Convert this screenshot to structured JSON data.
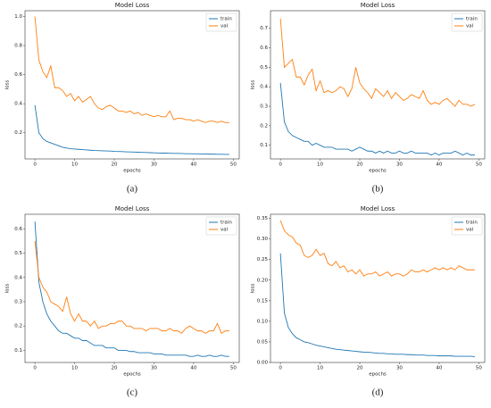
{
  "chart_data": [
    {
      "type": "line",
      "title": "Model Loss",
      "xlabel": "epochs",
      "ylabel": "loss",
      "caption": "(a)",
      "legend": "upper right",
      "xlim": [
        -2.5,
        51.5
      ],
      "ylim": [
        0.02,
        1.04
      ],
      "xticks": [
        0,
        10,
        20,
        30,
        40,
        50
      ],
      "yticks": [
        0.2,
        0.4,
        0.6,
        0.8,
        {
          "value": 1.0,
          "label": "1.0"
        }
      ],
      "x": [
        0,
        1,
        2,
        3,
        4,
        5,
        6,
        7,
        8,
        9,
        10,
        11,
        12,
        13,
        14,
        15,
        16,
        17,
        18,
        19,
        20,
        21,
        22,
        23,
        24,
        25,
        26,
        27,
        28,
        29,
        30,
        31,
        32,
        33,
        34,
        35,
        36,
        37,
        38,
        39,
        40,
        41,
        42,
        43,
        44,
        45,
        46,
        47,
        48,
        49
      ],
      "series": [
        {
          "name": "train",
          "color": "#1f77b4",
          "values": [
            0.39,
            0.2,
            0.16,
            0.14,
            0.13,
            0.12,
            0.11,
            0.1,
            0.095,
            0.09,
            0.088,
            0.086,
            0.084,
            0.082,
            0.08,
            0.078,
            0.077,
            0.076,
            0.075,
            0.074,
            0.072,
            0.071,
            0.07,
            0.069,
            0.068,
            0.067,
            0.066,
            0.065,
            0.064,
            0.063,
            0.062,
            0.061,
            0.06,
            0.06,
            0.059,
            0.058,
            0.058,
            0.057,
            0.056,
            0.056,
            0.055,
            0.055,
            0.054,
            0.054,
            0.053,
            0.053,
            0.052,
            0.052,
            0.051,
            0.051
          ]
        },
        {
          "name": "val",
          "color": "#ff7f0e",
          "values": [
            1.0,
            0.7,
            0.62,
            0.58,
            0.66,
            0.51,
            0.51,
            0.49,
            0.45,
            0.47,
            0.42,
            0.45,
            0.41,
            0.43,
            0.45,
            0.4,
            0.37,
            0.36,
            0.38,
            0.39,
            0.37,
            0.35,
            0.35,
            0.34,
            0.35,
            0.33,
            0.34,
            0.32,
            0.33,
            0.32,
            0.31,
            0.32,
            0.31,
            0.31,
            0.35,
            0.29,
            0.3,
            0.3,
            0.29,
            0.29,
            0.28,
            0.29,
            0.28,
            0.27,
            0.28,
            0.28,
            0.27,
            0.28,
            0.27,
            0.27
          ]
        }
      ]
    },
    {
      "type": "line",
      "title": "Model Loss",
      "xlabel": "epochs",
      "ylabel": "loss",
      "caption": "(b)",
      "legend": "upper right",
      "xlim": [
        -2.5,
        51.5
      ],
      "ylim": [
        0.03,
        0.79
      ],
      "xticks": [
        0,
        10,
        20,
        30,
        40,
        50
      ],
      "yticks": [
        0.1,
        0.2,
        0.3,
        0.4,
        0.5,
        0.6,
        0.7
      ],
      "x": [
        0,
        1,
        2,
        3,
        4,
        5,
        6,
        7,
        8,
        9,
        10,
        11,
        12,
        13,
        14,
        15,
        16,
        17,
        18,
        19,
        20,
        21,
        22,
        23,
        24,
        25,
        26,
        27,
        28,
        29,
        30,
        31,
        32,
        33,
        34,
        35,
        36,
        37,
        38,
        39,
        40,
        41,
        42,
        43,
        44,
        45,
        46,
        47,
        48,
        49
      ],
      "series": [
        {
          "name": "train",
          "color": "#1f77b4",
          "values": [
            0.42,
            0.22,
            0.17,
            0.15,
            0.14,
            0.13,
            0.12,
            0.12,
            0.1,
            0.11,
            0.1,
            0.09,
            0.09,
            0.09,
            0.08,
            0.08,
            0.08,
            0.08,
            0.07,
            0.08,
            0.09,
            0.08,
            0.07,
            0.07,
            0.06,
            0.07,
            0.06,
            0.07,
            0.06,
            0.06,
            0.07,
            0.06,
            0.06,
            0.07,
            0.06,
            0.06,
            0.06,
            0.06,
            0.05,
            0.06,
            0.05,
            0.06,
            0.06,
            0.06,
            0.07,
            0.06,
            0.05,
            0.06,
            0.05,
            0.05
          ]
        },
        {
          "name": "val",
          "color": "#ff7f0e",
          "values": [
            0.75,
            0.5,
            0.52,
            0.54,
            0.45,
            0.45,
            0.41,
            0.46,
            0.49,
            0.38,
            0.43,
            0.37,
            0.38,
            0.37,
            0.38,
            0.4,
            0.39,
            0.35,
            0.39,
            0.5,
            0.42,
            0.39,
            0.37,
            0.34,
            0.39,
            0.37,
            0.35,
            0.38,
            0.34,
            0.37,
            0.35,
            0.33,
            0.34,
            0.36,
            0.35,
            0.34,
            0.38,
            0.33,
            0.31,
            0.32,
            0.31,
            0.33,
            0.34,
            0.32,
            0.3,
            0.33,
            0.31,
            0.31,
            0.3,
            0.31
          ]
        }
      ]
    },
    {
      "type": "line",
      "title": "Model Loss",
      "xlabel": "epochs",
      "ylabel": "loss",
      "caption": "(c)",
      "legend": "upper right",
      "xlim": [
        -2.5,
        51.5
      ],
      "ylim": [
        0.05,
        0.66
      ],
      "xticks": [
        0,
        10,
        20,
        30,
        40,
        50
      ],
      "yticks": [
        0.1,
        0.2,
        0.3,
        0.4,
        0.5,
        0.6
      ],
      "x": [
        0,
        1,
        2,
        3,
        4,
        5,
        6,
        7,
        8,
        9,
        10,
        11,
        12,
        13,
        14,
        15,
        16,
        17,
        18,
        19,
        20,
        21,
        22,
        23,
        24,
        25,
        26,
        27,
        28,
        29,
        30,
        31,
        32,
        33,
        34,
        35,
        36,
        37,
        38,
        39,
        40,
        41,
        42,
        43,
        44,
        45,
        46,
        47,
        48,
        49
      ],
      "series": [
        {
          "name": "train",
          "color": "#1f77b4",
          "values": [
            0.63,
            0.38,
            0.3,
            0.25,
            0.22,
            0.2,
            0.18,
            0.17,
            0.17,
            0.16,
            0.15,
            0.15,
            0.14,
            0.14,
            0.13,
            0.12,
            0.12,
            0.12,
            0.11,
            0.11,
            0.11,
            0.1,
            0.1,
            0.1,
            0.095,
            0.095,
            0.09,
            0.09,
            0.09,
            0.09,
            0.085,
            0.085,
            0.085,
            0.08,
            0.08,
            0.08,
            0.08,
            0.08,
            0.08,
            0.075,
            0.075,
            0.08,
            0.075,
            0.075,
            0.08,
            0.075,
            0.075,
            0.08,
            0.075,
            0.075
          ]
        },
        {
          "name": "val",
          "color": "#ff7f0e",
          "values": [
            0.55,
            0.4,
            0.36,
            0.34,
            0.3,
            0.29,
            0.28,
            0.26,
            0.32,
            0.25,
            0.22,
            0.25,
            0.22,
            0.22,
            0.2,
            0.22,
            0.19,
            0.2,
            0.2,
            0.21,
            0.21,
            0.22,
            0.22,
            0.2,
            0.2,
            0.19,
            0.19,
            0.19,
            0.18,
            0.19,
            0.19,
            0.19,
            0.18,
            0.18,
            0.19,
            0.18,
            0.18,
            0.17,
            0.19,
            0.2,
            0.19,
            0.18,
            0.18,
            0.17,
            0.18,
            0.18,
            0.21,
            0.17,
            0.18,
            0.18
          ]
        }
      ]
    },
    {
      "type": "line",
      "title": "Model Loss",
      "xlabel": "epochs",
      "ylabel": "loss",
      "caption": "(d)",
      "legend": "upper right",
      "xlim": [
        -2.5,
        51.5
      ],
      "ylim": [
        0,
        0.36
      ],
      "xticks": [
        0,
        10,
        20,
        30,
        40,
        50
      ],
      "yticks": [
        {
          "value": 0,
          "label": "0.00"
        },
        0.05,
        {
          "value": 0.1,
          "label": "0.10"
        },
        0.15,
        {
          "value": 0.2,
          "label": "0.20"
        },
        0.25,
        {
          "value": 0.3,
          "label": "0.30"
        },
        0.35
      ],
      "x": [
        0,
        1,
        2,
        3,
        4,
        5,
        6,
        7,
        8,
        9,
        10,
        11,
        12,
        13,
        14,
        15,
        16,
        17,
        18,
        19,
        20,
        21,
        22,
        23,
        24,
        25,
        26,
        27,
        28,
        29,
        30,
        31,
        32,
        33,
        34,
        35,
        36,
        37,
        38,
        39,
        40,
        41,
        42,
        43,
        44,
        45,
        46,
        47,
        48,
        49
      ],
      "series": [
        {
          "name": "train",
          "color": "#1f77b4",
          "values": [
            0.265,
            0.12,
            0.085,
            0.07,
            0.06,
            0.055,
            0.05,
            0.048,
            0.045,
            0.042,
            0.04,
            0.038,
            0.036,
            0.034,
            0.032,
            0.031,
            0.03,
            0.029,
            0.028,
            0.027,
            0.026,
            0.025,
            0.025,
            0.024,
            0.023,
            0.022,
            0.022,
            0.021,
            0.021,
            0.02,
            0.02,
            0.02,
            0.019,
            0.019,
            0.018,
            0.018,
            0.018,
            0.017,
            0.017,
            0.017,
            0.016,
            0.016,
            0.016,
            0.016,
            0.015,
            0.015,
            0.015,
            0.015,
            0.015,
            0.014
          ]
        },
        {
          "name": "val",
          "color": "#ff7f0e",
          "values": [
            0.345,
            0.32,
            0.31,
            0.305,
            0.29,
            0.285,
            0.26,
            0.255,
            0.26,
            0.275,
            0.26,
            0.265,
            0.24,
            0.235,
            0.245,
            0.23,
            0.235,
            0.22,
            0.225,
            0.215,
            0.225,
            0.21,
            0.215,
            0.215,
            0.22,
            0.21,
            0.215,
            0.22,
            0.21,
            0.215,
            0.215,
            0.21,
            0.215,
            0.225,
            0.22,
            0.22,
            0.225,
            0.22,
            0.225,
            0.23,
            0.225,
            0.23,
            0.225,
            0.23,
            0.225,
            0.235,
            0.23,
            0.225,
            0.225,
            0.225
          ]
        }
      ]
    }
  ]
}
